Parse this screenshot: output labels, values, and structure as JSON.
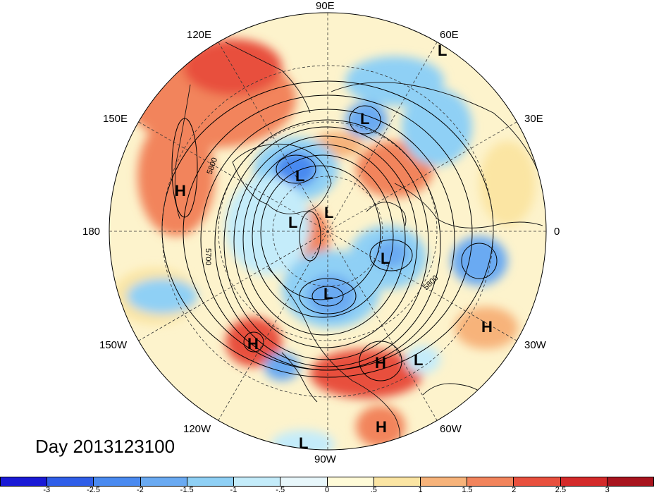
{
  "title": "Day 2013123100",
  "longitude_labels": {
    "e90": "90E",
    "e120": "120E",
    "e60": "60E",
    "e150": "150E",
    "e30": "30E",
    "d180": "180",
    "d0": "0",
    "w150": "150W",
    "w30": "30W",
    "w120": "120W",
    "w60": "60W",
    "w90": "90W"
  },
  "contour_labels": [
    "5800",
    "5700",
    "5800"
  ],
  "pressure_centers": [
    {
      "label": "L"
    },
    {
      "label": "L"
    },
    {
      "label": "L"
    },
    {
      "label": "L"
    },
    {
      "label": "L"
    },
    {
      "label": "L"
    },
    {
      "label": "L"
    },
    {
      "label": "L"
    },
    {
      "label": "L"
    },
    {
      "label": "H"
    },
    {
      "label": "H"
    },
    {
      "label": "H"
    },
    {
      "label": "H"
    },
    {
      "label": "H"
    }
  ],
  "colorbar": {
    "colors": [
      "#1a1ad6",
      "#2f5ee8",
      "#4a8af0",
      "#6aaaf2",
      "#8fd0f5",
      "#c4ecfa",
      "#e8f7fb",
      "#fffbd8",
      "#fbe5a3",
      "#f7b37a",
      "#f2845c",
      "#e8503e",
      "#d42a2a",
      "#a8141e"
    ],
    "ticks": [
      "-3",
      "-2.5",
      "-2",
      "-1.5",
      "-1",
      "-.5",
      "0",
      ".5",
      "1",
      "1.5",
      "2",
      "2.5",
      "3"
    ]
  }
}
